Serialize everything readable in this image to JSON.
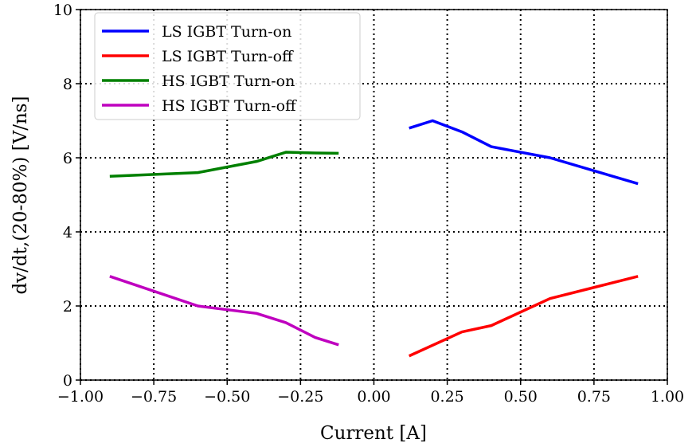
{
  "chart_data": {
    "type": "line",
    "title": "",
    "xlabel": "Current [A]",
    "ylabel": "dv/dt,(20-80%) [V/ns]",
    "xlim": [
      -1.0,
      1.0
    ],
    "ylim": [
      0,
      10
    ],
    "xticks": [
      "−1.00",
      "−0.75",
      "−0.50",
      "−0.25",
      "0.00",
      "0.25",
      "0.50",
      "0.75",
      "1.00"
    ],
    "xtick_values": [
      -1,
      -0.75,
      -0.5,
      -0.25,
      0,
      0.25,
      0.5,
      0.75,
      1
    ],
    "yticks": [
      "0",
      "2",
      "4",
      "6",
      "8",
      "10"
    ],
    "ytick_values": [
      0,
      2,
      4,
      6,
      8,
      10
    ],
    "grid": true,
    "legend_position": "top-left",
    "series": [
      {
        "name": "LS IGBT Turn-on",
        "color": "#0000ff",
        "x": [
          0.12,
          0.2,
          0.3,
          0.4,
          0.6,
          0.75,
          0.9
        ],
        "y": [
          6.8,
          7.0,
          6.7,
          6.3,
          6.0,
          5.65,
          5.3
        ]
      },
      {
        "name": "LS IGBT Turn-off",
        "color": "#ff0000",
        "x": [
          0.12,
          0.3,
          0.4,
          0.6,
          0.75,
          0.9
        ],
        "y": [
          0.65,
          1.3,
          1.47,
          2.2,
          2.5,
          2.8
        ]
      },
      {
        "name": "HS IGBT Turn-on",
        "color": "#008000",
        "x": [
          -0.9,
          -0.6,
          -0.4,
          -0.3,
          -0.2,
          -0.12
        ],
        "y": [
          5.5,
          5.6,
          5.9,
          6.15,
          6.13,
          6.12
        ]
      },
      {
        "name": "HS IGBT Turn-off",
        "color": "#bf00bf",
        "x": [
          -0.9,
          -0.6,
          -0.4,
          -0.3,
          -0.2,
          -0.12
        ],
        "y": [
          2.8,
          2.0,
          1.8,
          1.55,
          1.15,
          0.95
        ]
      }
    ]
  }
}
